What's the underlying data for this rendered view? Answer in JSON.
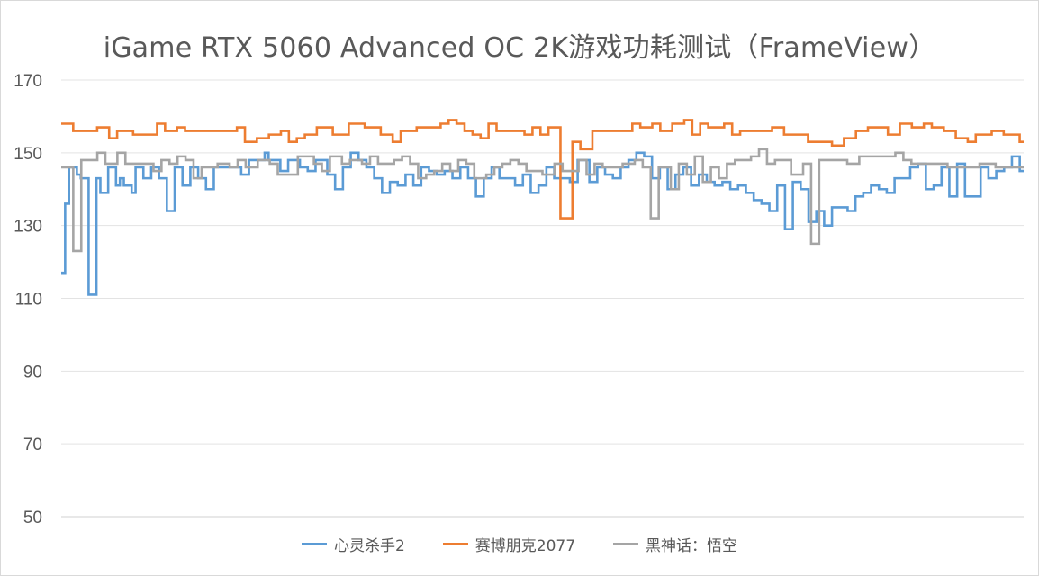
{
  "chart_data": {
    "type": "line",
    "title": "iGame RTX 5060 Advanced OC 2K游戏功耗测试（FrameView）",
    "xlabel": "",
    "ylabel": "",
    "ylim": [
      45,
      175
    ],
    "yticks": [
      50,
      70,
      90,
      110,
      130,
      150,
      170
    ],
    "grid": true,
    "legend": "bottom",
    "step": true,
    "series": [
      {
        "name": "心灵杀手2",
        "color": "#5b9bd5",
        "values": [
          117,
          136,
          146,
          146,
          144,
          143,
          143,
          111,
          111,
          143,
          139,
          139,
          146,
          146,
          141,
          143,
          141,
          141,
          139,
          146,
          146,
          143,
          143,
          146,
          146,
          143,
          143,
          134,
          134,
          146,
          146,
          141,
          141,
          146,
          146,
          143,
          143,
          140,
          140,
          146,
          146,
          146,
          146,
          146,
          146,
          146,
          144,
          144,
          148,
          148,
          148,
          148,
          150,
          148,
          148,
          148,
          145,
          145,
          148,
          148,
          148,
          146,
          146,
          145,
          145,
          148,
          148,
          148,
          144,
          144,
          140,
          140,
          146,
          146,
          150,
          150,
          148,
          148,
          146,
          146,
          143,
          143,
          139,
          139,
          142,
          142,
          141,
          141,
          144,
          144,
          141,
          141,
          146,
          146,
          145,
          145,
          144,
          144,
          145,
          145,
          143,
          143,
          146,
          146,
          143,
          143,
          138,
          138,
          143,
          143,
          146,
          146,
          143,
          143,
          143,
          143,
          141,
          141,
          144,
          144,
          139,
          139,
          141,
          141,
          146,
          146,
          143,
          143,
          143,
          143,
          142,
          142,
          148,
          148,
          148,
          142,
          142,
          146,
          146,
          144,
          144,
          143,
          143,
          146,
          146,
          148,
          148,
          150,
          150,
          149,
          149,
          143,
          143,
          146,
          146,
          140,
          140,
          144,
          144,
          146,
          146,
          141,
          141,
          144,
          144,
          142,
          142,
          141,
          141,
          142,
          142,
          140,
          140,
          141,
          141,
          139,
          139,
          137,
          137,
          136,
          136,
          134,
          134,
          141,
          141,
          129,
          129,
          142,
          142,
          140,
          140,
          131,
          131,
          134,
          134,
          130,
          130,
          135,
          135,
          135,
          135,
          134,
          134,
          138,
          138,
          139,
          139,
          141,
          141,
          140,
          140,
          139,
          139,
          143,
          143,
          143,
          143,
          146,
          146,
          147,
          147,
          140,
          140,
          141,
          141,
          146,
          146,
          138,
          138,
          147,
          147,
          138,
          138,
          138,
          138,
          146,
          146,
          143,
          143,
          145,
          145,
          146,
          146,
          149,
          149,
          145
        ]
      },
      {
        "name": "赛博朋克2077",
        "color": "#ed7d31",
        "values": [
          158,
          158,
          158,
          156,
          156,
          156,
          156,
          156,
          156,
          157,
          157,
          157,
          154,
          154,
          156,
          156,
          156,
          156,
          155,
          155,
          155,
          155,
          155,
          155,
          158,
          158,
          156,
          156,
          156,
          157,
          157,
          156,
          156,
          156,
          156,
          156,
          156,
          156,
          156,
          156,
          156,
          156,
          156,
          156,
          157,
          157,
          153,
          153,
          153,
          154,
          154,
          154,
          155,
          155,
          155,
          156,
          156,
          153,
          153,
          154,
          154,
          155,
          155,
          155,
          157,
          157,
          157,
          157,
          155,
          155,
          155,
          155,
          158,
          158,
          158,
          158,
          157,
          157,
          157,
          157,
          155,
          155,
          155,
          153,
          153,
          156,
          156,
          156,
          156,
          157,
          157,
          157,
          157,
          157,
          157,
          158,
          158,
          159,
          159,
          158,
          158,
          156,
          156,
          155,
          155,
          154,
          154,
          158,
          158,
          156,
          156,
          156,
          156,
          156,
          156,
          156,
          155,
          155,
          157,
          157,
          155,
          155,
          157,
          157,
          157,
          132,
          132,
          132,
          153,
          153,
          151,
          151,
          151,
          156,
          156,
          156,
          156,
          156,
          156,
          156,
          156,
          156,
          156,
          158,
          158,
          157,
          157,
          157,
          158,
          158,
          156,
          156,
          156,
          158,
          158,
          158,
          159,
          159,
          155,
          155,
          158,
          158,
          157,
          157,
          157,
          157,
          158,
          158,
          155,
          155,
          156,
          156,
          156,
          156,
          156,
          156,
          156,
          156,
          157,
          157,
          157,
          155,
          155,
          155,
          155,
          155,
          155,
          153,
          153,
          153,
          153,
          153,
          153,
          152,
          152,
          152,
          154,
          154,
          154,
          156,
          156,
          156,
          157,
          157,
          157,
          157,
          157,
          155,
          155,
          155,
          158,
          158,
          158,
          157,
          157,
          157,
          158,
          158,
          157,
          157,
          157,
          156,
          156,
          156,
          154,
          154,
          154,
          153,
          153,
          155,
          155,
          155,
          155,
          156,
          156,
          156,
          155,
          155,
          155,
          155,
          153
        ]
      },
      {
        "name": "黑神话：悟空",
        "color": "#a5a5a5",
        "values": [
          146,
          146,
          146,
          123,
          123,
          148,
          148,
          148,
          148,
          150,
          150,
          147,
          147,
          147,
          150,
          150,
          147,
          147,
          147,
          147,
          147,
          147,
          147,
          145,
          145,
          148,
          148,
          147,
          147,
          149,
          149,
          148,
          148,
          143,
          143,
          146,
          146,
          146,
          146,
          147,
          147,
          147,
          146,
          146,
          148,
          148,
          146,
          146,
          146,
          148,
          148,
          148,
          147,
          147,
          144,
          144,
          144,
          144,
          144,
          149,
          149,
          149,
          149,
          147,
          147,
          145,
          145,
          149,
          149,
          149,
          147,
          147,
          148,
          148,
          148,
          147,
          147,
          149,
          149,
          147,
          147,
          147,
          147,
          148,
          148,
          149,
          149,
          147,
          147,
          143,
          143,
          144,
          144,
          145,
          145,
          147,
          147,
          145,
          145,
          148,
          148,
          147,
          147,
          143,
          143,
          143,
          144,
          144,
          146,
          146,
          147,
          147,
          148,
          148,
          147,
          147,
          145,
          145,
          145,
          145,
          144,
          144,
          144,
          147,
          147,
          145,
          145,
          145,
          145,
          148,
          148,
          144,
          144,
          147,
          147,
          146,
          146,
          146,
          146,
          146,
          147,
          147,
          147,
          148,
          148,
          146,
          146,
          132,
          132,
          146,
          146,
          146,
          140,
          140,
          147,
          147,
          144,
          144,
          149,
          149,
          142,
          142,
          146,
          146,
          143,
          143,
          147,
          147,
          148,
          148,
          148,
          148,
          149,
          149,
          151,
          151,
          147,
          147,
          148,
          148,
          148,
          148,
          144,
          144,
          144,
          147,
          147,
          125,
          125,
          148,
          148,
          148,
          148,
          148,
          148,
          148,
          147,
          147,
          147,
          149,
          149,
          149,
          149,
          149,
          149,
          149,
          149,
          149,
          150,
          150,
          148,
          148,
          147,
          147,
          147,
          147,
          147,
          147,
          147,
          147,
          147,
          146,
          146,
          146,
          146,
          146,
          146,
          146,
          146,
          147,
          147,
          147,
          147,
          146,
          146,
          146,
          146,
          146,
          146,
          146
        ]
      }
    ]
  }
}
